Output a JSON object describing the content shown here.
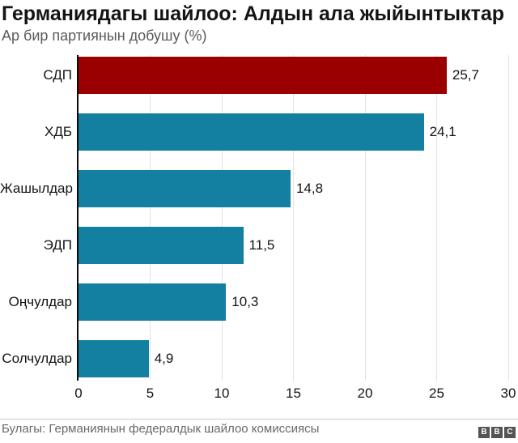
{
  "header": {
    "title": "Германиядагы шайлоо: Алдын ала жыйынтыктар",
    "subtitle": "Ар бир партиянын добушу (%)"
  },
  "chart_data": {
    "type": "bar",
    "orientation": "horizontal",
    "title": "Германиядагы шайлоо: Алдын ала жыйынтыктар",
    "subtitle": "Ар бир партиянын добушу (%)",
    "categories": [
      "СДП",
      "ХДБ",
      "Жашылдар",
      "ЭДП",
      "Оңчулдар",
      "Солчулдар"
    ],
    "values": [
      25.7,
      24.1,
      14.8,
      11.5,
      10.3,
      4.9
    ],
    "value_labels": [
      "25,7",
      "24,1",
      "14,8",
      "11,5",
      "10,3",
      "4,9"
    ],
    "bar_colors": [
      "#9a0000",
      "#1380a1",
      "#1380a1",
      "#1380a1",
      "#1380a1",
      "#1380a1"
    ],
    "highlight_color": "#9a0000",
    "series_color": "#1380a1",
    "xlim": [
      0,
      30
    ],
    "x_ticks": [
      0,
      5,
      10,
      15,
      20,
      25,
      30
    ],
    "grid": true,
    "legend": false,
    "gridline_color": "#e2e2e2",
    "axis_color": "#0a0a0a"
  },
  "footer": {
    "source": "Булагы: Германиянын федералдык шайлоо комиссиясы",
    "logo_blocks": [
      "B",
      "B",
      "C"
    ]
  }
}
